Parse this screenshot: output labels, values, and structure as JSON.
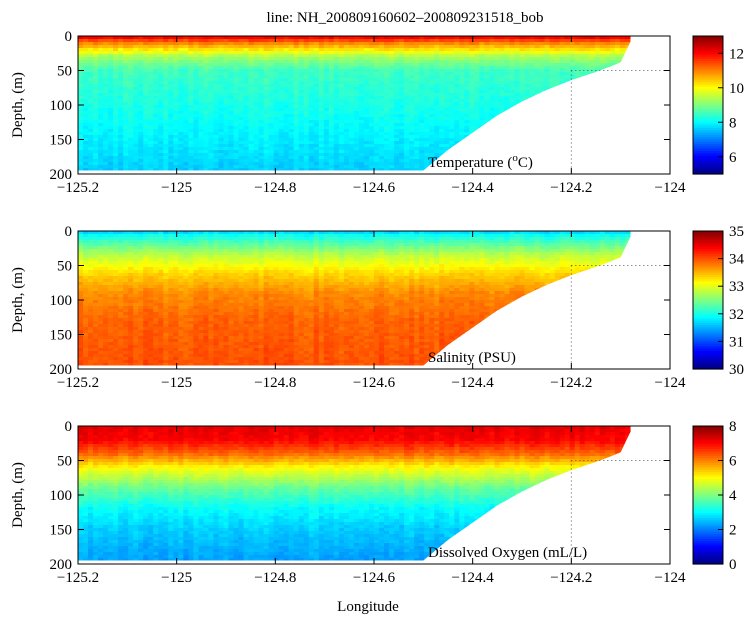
{
  "title": "line: NH_200809160602–200809231518_bob",
  "xlabel": "Longitude",
  "chart_data": [
    {
      "type": "heatmap",
      "variable_label": "Temperature (",
      "variable_label_sup": "o",
      "variable_label_tail": "C)",
      "ylabel": "Depth, (m)",
      "x_range": [
        -125.2,
        -124.0
      ],
      "y_range": [
        0,
        200
      ],
      "y_inverted": true,
      "xticks": [
        -125.2,
        -125.0,
        -124.8,
        -124.6,
        -124.4,
        -124.2,
        -124.0
      ],
      "xtick_labels": [
        "−125.2",
        "−125",
        "−124.8",
        "−124.6",
        "−124.4",
        "−124.2",
        "−124"
      ],
      "yticks": [
        0,
        50,
        100,
        150,
        200
      ],
      "ytick_labels": [
        "0",
        "50",
        "100",
        "150",
        "200"
      ],
      "colorbar_range": [
        5,
        13
      ],
      "colorbar_ticks": [
        6,
        8,
        10,
        12
      ],
      "colorbar_tick_labels": [
        "6",
        "8",
        "10",
        "12"
      ],
      "colormap": "jet",
      "dotted_gridlines": {
        "x": [
          -124.2
        ],
        "y": [
          50
        ]
      },
      "profile": {
        "depths": [
          0,
          10,
          30,
          50,
          100,
          150,
          200
        ],
        "values": [
          12.3,
          11.0,
          9.3,
          8.5,
          8.2,
          7.9,
          7.6
        ]
      },
      "bottom_depth": {
        "lon": [
          -125.2,
          -124.5,
          -124.45,
          -124.4,
          -124.35,
          -124.3,
          -124.25,
          -124.2,
          -124.15,
          -124.12,
          -124.1,
          -124.08
        ],
        "depth": [
          195,
          195,
          165,
          140,
          115,
          95,
          78,
          64,
          52,
          44,
          38,
          8
        ]
      }
    },
    {
      "type": "heatmap",
      "variable_label": "Salinity (PSU)",
      "ylabel": "Depth, (m)",
      "x_range": [
        -125.2,
        -124.0
      ],
      "y_range": [
        0,
        200
      ],
      "y_inverted": true,
      "xticks": [
        -125.2,
        -125.0,
        -124.8,
        -124.6,
        -124.4,
        -124.2,
        -124.0
      ],
      "xtick_labels": [
        "−125.2",
        "−125",
        "−124.8",
        "−124.6",
        "−124.4",
        "−124.2",
        "−124"
      ],
      "yticks": [
        0,
        50,
        100,
        150,
        200
      ],
      "ytick_labels": [
        "0",
        "50",
        "100",
        "150",
        "200"
      ],
      "colorbar_range": [
        30,
        35
      ],
      "colorbar_ticks": [
        30,
        31,
        32,
        33,
        34,
        35
      ],
      "colorbar_tick_labels": [
        "30",
        "31",
        "32",
        "33",
        "34",
        "35"
      ],
      "colormap": "jet",
      "dotted_gridlines": {
        "x": [
          -124.2
        ],
        "y": [
          50
        ]
      },
      "profile": {
        "depths": [
          0,
          5,
          15,
          35,
          60,
          90,
          130,
          200
        ],
        "values": [
          31.6,
          31.9,
          32.2,
          32.8,
          33.3,
          33.7,
          33.9,
          34.0
        ]
      },
      "bottom_depth": {
        "lon": [
          -125.2,
          -124.5,
          -124.45,
          -124.4,
          -124.35,
          -124.3,
          -124.25,
          -124.2,
          -124.15,
          -124.12,
          -124.1,
          -124.08
        ],
        "depth": [
          195,
          195,
          165,
          140,
          115,
          95,
          78,
          64,
          52,
          44,
          38,
          8
        ]
      }
    },
    {
      "type": "heatmap",
      "variable_label": "Dissolved Oxygen (mL/L)",
      "ylabel": "Depth, (m)",
      "x_range": [
        -125.2,
        -124.0
      ],
      "y_range": [
        0,
        200
      ],
      "y_inverted": true,
      "xticks": [
        -125.2,
        -125.0,
        -124.8,
        -124.6,
        -124.4,
        -124.2,
        -124.0
      ],
      "xtick_labels": [
        "−125.2",
        "−125",
        "−124.8",
        "−124.6",
        "−124.4",
        "−124.2",
        "−124"
      ],
      "yticks": [
        0,
        50,
        100,
        150,
        200
      ],
      "ytick_labels": [
        "0",
        "50",
        "100",
        "150",
        "200"
      ],
      "colorbar_range": [
        0,
        8
      ],
      "colorbar_ticks": [
        0,
        2,
        4,
        6,
        8
      ],
      "colorbar_tick_labels": [
        "0",
        "2",
        "4",
        "6",
        "8"
      ],
      "colormap": "jet",
      "dotted_gridlines": {
        "x": [
          -124.2
        ],
        "y": [
          50
        ]
      },
      "profile": {
        "depths": [
          0,
          20,
          40,
          60,
          90,
          120,
          150,
          200
        ],
        "values": [
          7.2,
          7.0,
          6.2,
          5.0,
          3.8,
          3.0,
          2.6,
          2.2
        ]
      },
      "bottom_depth": {
        "lon": [
          -125.2,
          -124.5,
          -124.45,
          -124.4,
          -124.35,
          -124.3,
          -124.25,
          -124.2,
          -124.15,
          -124.12,
          -124.1,
          -124.08
        ],
        "depth": [
          195,
          195,
          165,
          140,
          115,
          95,
          78,
          64,
          52,
          44,
          38,
          8
        ]
      }
    }
  ]
}
